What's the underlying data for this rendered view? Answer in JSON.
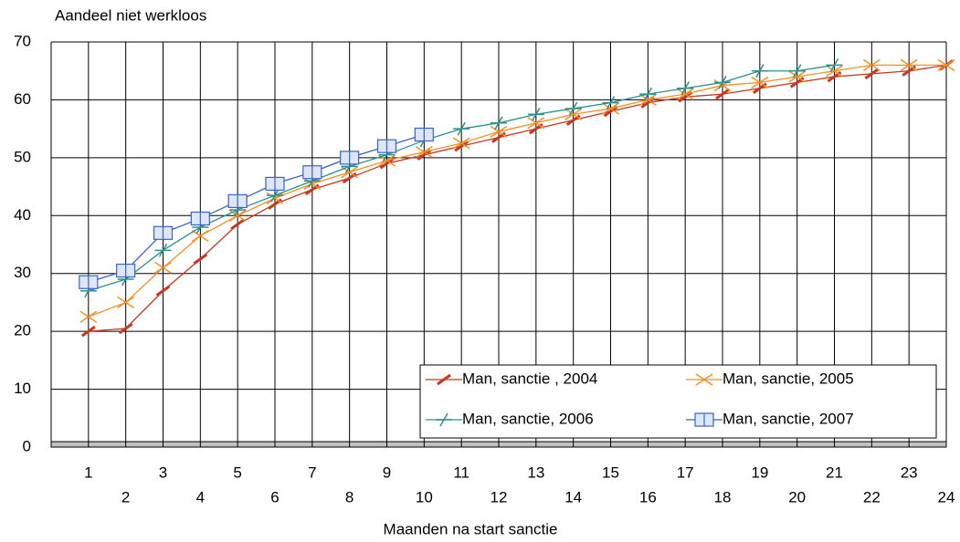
{
  "chart_data": {
    "type": "line",
    "y_axis_title": "Aandeel niet werkloos",
    "x_axis_title": "Maanden na start sanctie",
    "x": [
      1,
      2,
      3,
      4,
      5,
      6,
      7,
      8,
      9,
      10,
      11,
      12,
      13,
      14,
      15,
      16,
      17,
      18,
      19,
      20,
      21,
      22,
      23,
      24
    ],
    "xlim": [
      0,
      24
    ],
    "ylim": [
      0,
      70
    ],
    "yticks": [
      0,
      10,
      20,
      30,
      40,
      50,
      60,
      70
    ],
    "grid": true,
    "legend": "lower right",
    "series": [
      {
        "name": "Man, sanctie , 2004",
        "color": "#c8371e",
        "marker": "pencil",
        "values": [
          20,
          20.5,
          27,
          32.5,
          38.5,
          42,
          44.5,
          46.5,
          49,
          50.5,
          52,
          53.5,
          55,
          56.5,
          58,
          59.5,
          60.5,
          61,
          62,
          63,
          64,
          64.5,
          65,
          66
        ]
      },
      {
        "name": "Man, sanctie, 2005",
        "color": "#f39026",
        "marker": "scissors",
        "values": [
          22.5,
          25,
          31,
          36.5,
          40,
          43,
          45.5,
          47.5,
          49.5,
          51,
          52.5,
          54.5,
          56,
          57.5,
          58.5,
          60,
          61,
          62.5,
          63,
          64,
          65,
          66,
          66,
          66
        ]
      },
      {
        "name": "Man, sanctie, 2006",
        "color": "#2a9090",
        "marker": "cross",
        "values": [
          27,
          29,
          34,
          38,
          41,
          43.5,
          46,
          48.5,
          50.5,
          53,
          55,
          56,
          57.5,
          58.5,
          59.5,
          61,
          62,
          63,
          65,
          65,
          66,
          null,
          null,
          null
        ]
      },
      {
        "name": "Man, sanctie, 2007",
        "color": "#3a62c9",
        "marker": "book",
        "values": [
          28.5,
          30.5,
          37,
          39.5,
          42.5,
          45.5,
          47.5,
          50,
          52,
          54,
          null,
          null,
          null,
          null,
          null,
          null,
          null,
          null,
          null,
          null,
          null,
          null,
          null,
          null
        ]
      }
    ]
  }
}
